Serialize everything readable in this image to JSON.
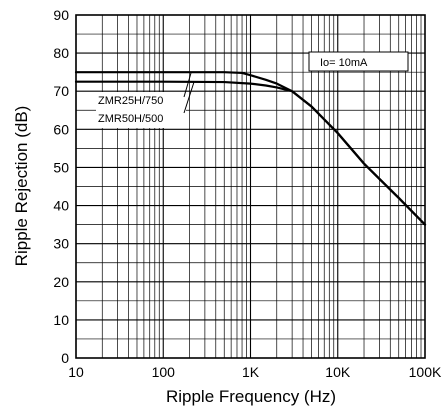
{
  "chart_data": {
    "type": "line",
    "xlabel": "Ripple Frequency (Hz)",
    "ylabel": "Ripple Rejection (dB)",
    "x_scale": "log",
    "xlim": [
      10,
      100000
    ],
    "ylim": [
      0,
      90
    ],
    "grid": true,
    "x_tick_labels": [
      {
        "value": 10,
        "label": "10"
      },
      {
        "value": 100,
        "label": "100"
      },
      {
        "value": 1000,
        "label": "1K"
      },
      {
        "value": 10000,
        "label": "10K"
      },
      {
        "value": 100000,
        "label": "100K"
      }
    ],
    "y_ticks": [
      0,
      10,
      20,
      30,
      40,
      50,
      60,
      70,
      80,
      90
    ],
    "series": [
      {
        "name": "ZMR25H/750",
        "x": [
          10,
          100,
          500,
          800,
          1000,
          1500,
          2000,
          3000,
          5000,
          10000,
          20000,
          50000,
          100000
        ],
        "y": [
          75,
          75,
          75,
          74.8,
          74.2,
          73,
          72,
          70,
          66,
          59,
          51,
          42,
          35
        ]
      },
      {
        "name": "ZMR50H/500",
        "x": [
          10,
          100,
          500,
          1000,
          1500,
          2000,
          3000,
          5000,
          10000,
          20000,
          50000,
          100000
        ],
        "y": [
          72.5,
          72.5,
          72.4,
          72,
          71.5,
          71,
          70,
          66,
          59,
          51,
          42,
          35
        ]
      }
    ],
    "annotations": {
      "io_label": "Io= 10mA"
    },
    "colors": {
      "line": "#000000",
      "grid": "#000000",
      "background": "#ffffff"
    }
  }
}
